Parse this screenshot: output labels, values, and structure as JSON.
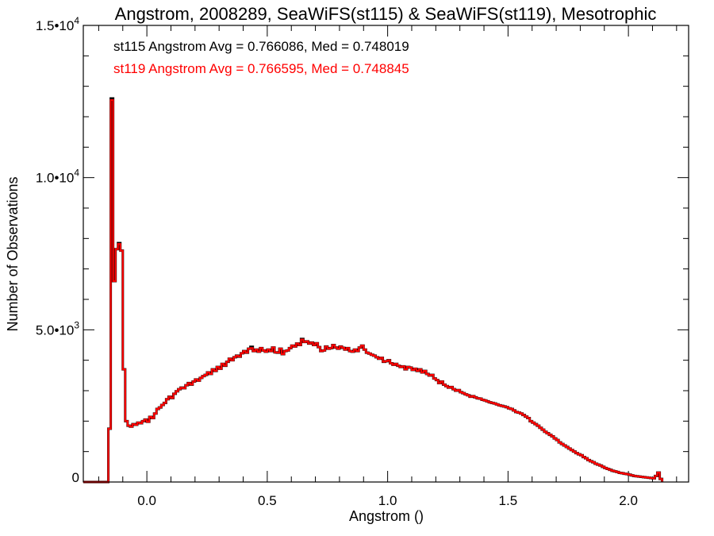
{
  "chart_data": {
    "type": "histogram",
    "title": "Angstrom, 2008289, SeaWiFS(st115) & SeaWiFS(st119), Mesotrophic",
    "xlabel": "Angstrom ()",
    "ylabel": "Number of Observations",
    "xlim": [
      -0.264,
      2.25
    ],
    "ylim": [
      0,
      15000
    ],
    "x_ticks": [
      0.0,
      0.5,
      1.0,
      1.5,
      2.0
    ],
    "x_tick_labels": [
      "0.0",
      "0.5",
      "1.0",
      "1.5",
      "2.0"
    ],
    "x_minor_step": 0.1,
    "y_ticks": [
      0,
      5000,
      10000,
      15000
    ],
    "y_tick_labels": [
      {
        "mantissa": "0",
        "exp": ""
      },
      {
        "mantissa": "5.0•10",
        "exp": "3"
      },
      {
        "mantissa": "1.0•10",
        "exp": "4"
      },
      {
        "mantissa": "1.5•10",
        "exp": "4"
      }
    ],
    "y_minor_step": 1000,
    "grid": false,
    "bin_start": -0.16,
    "bin_width": 0.01,
    "annotations": [
      {
        "text": "st115 Angstrom Avg = 0.766086, Med = 0.748019",
        "color": "#000000"
      },
      {
        "text": "st119 Angstrom Avg = 0.766595, Med = 0.748845",
        "color": "#ff0000"
      }
    ],
    "series": [
      {
        "name": "st115",
        "color": "#000000",
        "values": [
          1750,
          12600,
          6600,
          7650,
          7850,
          7600,
          3700,
          2000,
          1850,
          1820,
          1900,
          1880,
          1950,
          1930,
          2000,
          2050,
          1980,
          2140,
          2100,
          2250,
          2400,
          2450,
          2530,
          2600,
          2720,
          2800,
          2760,
          2900,
          2980,
          3050,
          3100,
          3080,
          3180,
          3250,
          3200,
          3300,
          3370,
          3330,
          3420,
          3480,
          3520,
          3600,
          3550,
          3700,
          3650,
          3780,
          3720,
          3880,
          3820,
          3950,
          4050,
          4000,
          4100,
          4150,
          4120,
          4230,
          4300,
          4250,
          4380,
          4440,
          4300,
          4350,
          4280,
          4400,
          4320,
          4280,
          4350,
          4300,
          4420,
          4260,
          4250,
          4380,
          4200,
          4300,
          4320,
          4400,
          4480,
          4450,
          4550,
          4500,
          4700,
          4600,
          4620,
          4550,
          4580,
          4500,
          4560,
          4430,
          4300,
          4320,
          4450,
          4380,
          4400,
          4500,
          4420,
          4380,
          4450,
          4410,
          4350,
          4400,
          4300,
          4280,
          4350,
          4300,
          4420,
          4480,
          4350,
          4250,
          4220,
          4180,
          4150,
          4100,
          4050,
          4080,
          3950,
          3970,
          4000,
          3900,
          3850,
          3880,
          3820,
          3780,
          3800,
          3700,
          3780,
          3760,
          3680,
          3720,
          3650,
          3700,
          3600,
          3650,
          3550,
          3500,
          3520,
          3400,
          3350,
          3250,
          3300,
          3200,
          3150,
          3100,
          3120,
          3050,
          3000,
          3020,
          2950,
          2920,
          2880,
          2850,
          2800,
          2820,
          2780,
          2750,
          2740,
          2700,
          2680,
          2650,
          2620,
          2600,
          2580,
          2550,
          2520,
          2500,
          2480,
          2460,
          2420,
          2400,
          2350,
          2300,
          2280,
          2250,
          2200,
          2150,
          2100,
          2000,
          1950,
          1900,
          1850,
          1780,
          1720,
          1650,
          1600,
          1550,
          1500,
          1430,
          1380,
          1300,
          1250,
          1200,
          1150,
          1100,
          1050,
          1000,
          950,
          910,
          880,
          820,
          780,
          720,
          680,
          650,
          600,
          570,
          540,
          500,
          460,
          430,
          400,
          370,
          350,
          330,
          300,
          290,
          270,
          260,
          240,
          220,
          200,
          190,
          180,
          170,
          160,
          150,
          140,
          130,
          120,
          200,
          310,
          100
        ]
      },
      {
        "name": "st119",
        "color": "#ff0000",
        "values": [
          1750,
          12550,
          6600,
          7650,
          7820,
          7600,
          3700,
          2000,
          1850,
          1820,
          1900,
          1880,
          1950,
          1930,
          2000,
          2050,
          1980,
          2140,
          2100,
          2250,
          2400,
          2450,
          2530,
          2600,
          2720,
          2800,
          2760,
          2900,
          2980,
          3050,
          3100,
          3080,
          3180,
          3250,
          3200,
          3300,
          3370,
          3330,
          3420,
          3480,
          3520,
          3600,
          3550,
          3700,
          3650,
          3780,
          3720,
          3880,
          3820,
          3950,
          4050,
          4000,
          4100,
          4150,
          4120,
          4230,
          4300,
          4250,
          4380,
          4400,
          4300,
          4350,
          4280,
          4400,
          4320,
          4280,
          4350,
          4300,
          4420,
          4260,
          4250,
          4380,
          4200,
          4300,
          4320,
          4400,
          4480,
          4450,
          4550,
          4500,
          4680,
          4600,
          4620,
          4550,
          4580,
          4500,
          4560,
          4430,
          4300,
          4320,
          4450,
          4380,
          4400,
          4500,
          4420,
          4380,
          4450,
          4410,
          4350,
          4400,
          4300,
          4280,
          4350,
          4300,
          4420,
          4480,
          4350,
          4250,
          4220,
          4180,
          4150,
          4100,
          4050,
          4080,
          3950,
          3970,
          4000,
          3900,
          3850,
          3880,
          3820,
          3780,
          3800,
          3700,
          3780,
          3760,
          3680,
          3720,
          3650,
          3700,
          3600,
          3650,
          3550,
          3500,
          3520,
          3400,
          3350,
          3250,
          3300,
          3200,
          3150,
          3100,
          3120,
          3050,
          3000,
          3020,
          2950,
          2920,
          2880,
          2850,
          2800,
          2820,
          2780,
          2750,
          2740,
          2700,
          2680,
          2650,
          2620,
          2600,
          2580,
          2550,
          2520,
          2500,
          2480,
          2460,
          2420,
          2400,
          2350,
          2300,
          2280,
          2250,
          2200,
          2150,
          2100,
          2000,
          1950,
          1900,
          1850,
          1780,
          1720,
          1650,
          1600,
          1550,
          1500,
          1430,
          1380,
          1300,
          1250,
          1200,
          1150,
          1100,
          1050,
          1000,
          950,
          910,
          880,
          820,
          780,
          720,
          680,
          650,
          600,
          570,
          540,
          500,
          460,
          430,
          400,
          370,
          350,
          330,
          300,
          290,
          270,
          260,
          240,
          220,
          200,
          190,
          180,
          170,
          160,
          150,
          140,
          130,
          120,
          200,
          310,
          100
        ]
      }
    ]
  }
}
